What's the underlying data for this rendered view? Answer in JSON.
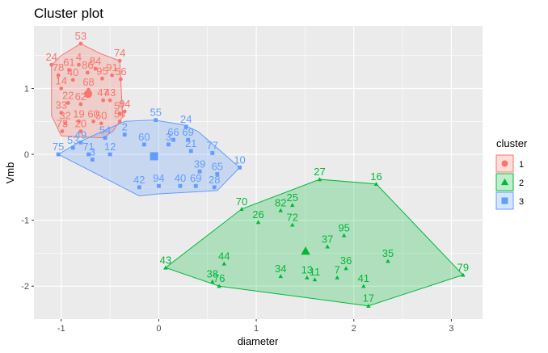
{
  "chart_data": {
    "type": "scatter",
    "title": "Cluster plot",
    "xlabel": "diameter",
    "ylabel": "Vmb",
    "xlim": [
      -1.28,
      3.32
    ],
    "ylim": [
      -2.5,
      1.95
    ],
    "x_ticks": [
      -1,
      0,
      1,
      2,
      3
    ],
    "y_ticks": [
      -2,
      -1,
      0,
      1
    ],
    "grid": true,
    "legend": {
      "title": "cluster",
      "position": "right",
      "entries": [
        "1",
        "2",
        "3"
      ]
    },
    "colors": {
      "1": "#F8766D",
      "2": "#00BA38",
      "3": "#619CFF"
    },
    "series": [
      {
        "name": "1",
        "hull": [
          [
            -0.8,
            1.68
          ],
          [
            -0.6,
            1.53
          ],
          [
            -0.4,
            1.42
          ],
          [
            -0.37,
            0.57
          ],
          [
            -0.47,
            0.35
          ],
          [
            -0.57,
            0.25
          ],
          [
            -1.0,
            0.28
          ],
          [
            -1.1,
            0.59
          ],
          [
            -1.1,
            1.35
          ],
          [
            -1.0,
            1.5
          ]
        ],
        "points": [
          {
            "id": "53",
            "x": -0.8,
            "y": 1.68
          },
          {
            "id": "74",
            "x": -0.4,
            "y": 1.42
          },
          {
            "id": "24",
            "x": -1.1,
            "y": 1.36
          },
          {
            "id": "4",
            "x": -0.82,
            "y": 1.36
          },
          {
            "id": "84",
            "x": -0.65,
            "y": 1.3
          },
          {
            "id": "61",
            "x": -0.92,
            "y": 1.28
          },
          {
            "id": "91",
            "x": -0.48,
            "y": 1.2
          },
          {
            "id": "86",
            "x": -0.73,
            "y": 1.24
          },
          {
            "id": "56",
            "x": -0.39,
            "y": 1.14
          },
          {
            "id": "95",
            "x": -0.58,
            "y": 1.15
          },
          {
            "id": "40",
            "x": -0.88,
            "y": 1.13
          },
          {
            "id": "78",
            "x": -1.03,
            "y": 1.2
          },
          {
            "id": "14",
            "x": -1.0,
            "y": 1.0
          },
          {
            "id": "68",
            "x": -0.72,
            "y": 0.98
          },
          {
            "id": "22",
            "x": -0.93,
            "y": 0.78
          },
          {
            "id": "47",
            "x": -0.57,
            "y": 0.82
          },
          {
            "id": "43",
            "x": -0.5,
            "y": 0.82
          },
          {
            "id": "62",
            "x": -0.8,
            "y": 0.76
          },
          {
            "id": "33",
            "x": -1.0,
            "y": 0.63
          },
          {
            "id": "57",
            "x": -0.4,
            "y": 0.62
          },
          {
            "id": "64",
            "x": -0.35,
            "y": 0.65
          },
          {
            "id": "32",
            "x": -0.96,
            "y": 0.47
          },
          {
            "id": "19",
            "x": -0.82,
            "y": 0.5
          },
          {
            "id": "60",
            "x": -0.67,
            "y": 0.5
          },
          {
            "id": "50",
            "x": -0.59,
            "y": 0.47
          },
          {
            "id": "20",
            "x": -0.8,
            "y": 0.35
          },
          {
            "id": "73",
            "x": -0.99,
            "y": 0.35
          },
          {
            "id": "54",
            "x": -0.4,
            "y": 0.5
          }
        ]
      },
      {
        "name": "2",
        "hull": [
          [
            0.07,
            -1.72
          ],
          [
            0.62,
            -2.0
          ],
          [
            2.15,
            -2.3
          ],
          [
            3.12,
            -1.83
          ],
          [
            2.23,
            -0.45
          ],
          [
            1.65,
            -0.38
          ],
          [
            0.85,
            -0.83
          ]
        ],
        "points": [
          {
            "id": "27",
            "x": 1.65,
            "y": -0.38
          },
          {
            "id": "16",
            "x": 2.23,
            "y": -0.45
          },
          {
            "id": "70",
            "x": 0.85,
            "y": -0.83
          },
          {
            "id": "82",
            "x": 1.25,
            "y": -0.85
          },
          {
            "id": "25",
            "x": 1.37,
            "y": -0.77
          },
          {
            "id": "26",
            "x": 1.02,
            "y": -1.03
          },
          {
            "id": "72",
            "x": 1.37,
            "y": -1.07
          },
          {
            "id": "95",
            "x": 1.9,
            "y": -1.23
          },
          {
            "id": "37",
            "x": 1.73,
            "y": -1.4
          },
          {
            "id": "35",
            "x": 2.35,
            "y": -1.62
          },
          {
            "id": "79",
            "x": 3.12,
            "y": -1.83
          },
          {
            "id": "43",
            "x": 0.07,
            "y": -1.72
          },
          {
            "id": "44",
            "x": 0.67,
            "y": -1.66
          },
          {
            "id": "34",
            "x": 1.25,
            "y": -1.85
          },
          {
            "id": "13",
            "x": 1.52,
            "y": -1.87
          },
          {
            "id": "36",
            "x": 1.92,
            "y": -1.73
          },
          {
            "id": "7",
            "x": 1.83,
            "y": -1.87
          },
          {
            "id": "41",
            "x": 2.1,
            "y": -2.0
          },
          {
            "id": "38",
            "x": 0.55,
            "y": -1.93
          },
          {
            "id": "76",
            "x": 0.62,
            "y": -2.0
          },
          {
            "id": "11",
            "x": 1.6,
            "y": -1.9
          },
          {
            "id": "17",
            "x": 2.15,
            "y": -2.3
          }
        ]
      },
      {
        "name": "3",
        "hull": [
          [
            -1.03,
            0.0
          ],
          [
            -0.8,
            0.2
          ],
          [
            -0.35,
            0.5
          ],
          [
            -0.05,
            0.52
          ],
          [
            0.25,
            0.45
          ],
          [
            0.4,
            0.35
          ],
          [
            0.83,
            -0.2
          ],
          [
            0.6,
            -0.55
          ],
          [
            0.0,
            -0.6
          ],
          [
            -0.2,
            -0.63
          ]
        ],
        "points": [
          {
            "id": "55",
            "x": -0.03,
            "y": 0.52
          },
          {
            "id": "24",
            "x": 0.28,
            "y": 0.42
          },
          {
            "id": "2",
            "x": -0.35,
            "y": 0.3
          },
          {
            "id": "54",
            "x": -0.55,
            "y": 0.25
          },
          {
            "id": "66",
            "x": 0.15,
            "y": 0.22
          },
          {
            "id": "69",
            "x": 0.3,
            "y": 0.22
          },
          {
            "id": "60",
            "x": -0.15,
            "y": 0.15
          },
          {
            "id": "3",
            "x": 0.1,
            "y": 0.15
          },
          {
            "id": "49",
            "x": -0.8,
            "y": 0.18
          },
          {
            "id": "53",
            "x": -0.88,
            "y": 0.1
          },
          {
            "id": "75",
            "x": -1.03,
            "y": 0.0
          },
          {
            "id": "71",
            "x": -0.72,
            "y": 0.0
          },
          {
            "id": "12",
            "x": -0.5,
            "y": 0.0
          },
          {
            "id": "3",
            "x": -0.68,
            "y": -0.08
          },
          {
            "id": "21",
            "x": 0.33,
            "y": 0.05
          },
          {
            "id": "77",
            "x": 0.55,
            "y": 0.02
          },
          {
            "id": "10",
            "x": 0.83,
            "y": -0.2
          },
          {
            "id": "39",
            "x": 0.42,
            "y": -0.26
          },
          {
            "id": "65",
            "x": 0.6,
            "y": -0.3
          },
          {
            "id": "42",
            "x": -0.2,
            "y": -0.5
          },
          {
            "id": "94",
            "x": 0.0,
            "y": -0.48
          },
          {
            "id": "40",
            "x": 0.22,
            "y": -0.48
          },
          {
            "id": "69",
            "x": 0.38,
            "y": -0.48
          },
          {
            "id": "28",
            "x": 0.57,
            "y": -0.5
          }
        ]
      }
    ]
  }
}
